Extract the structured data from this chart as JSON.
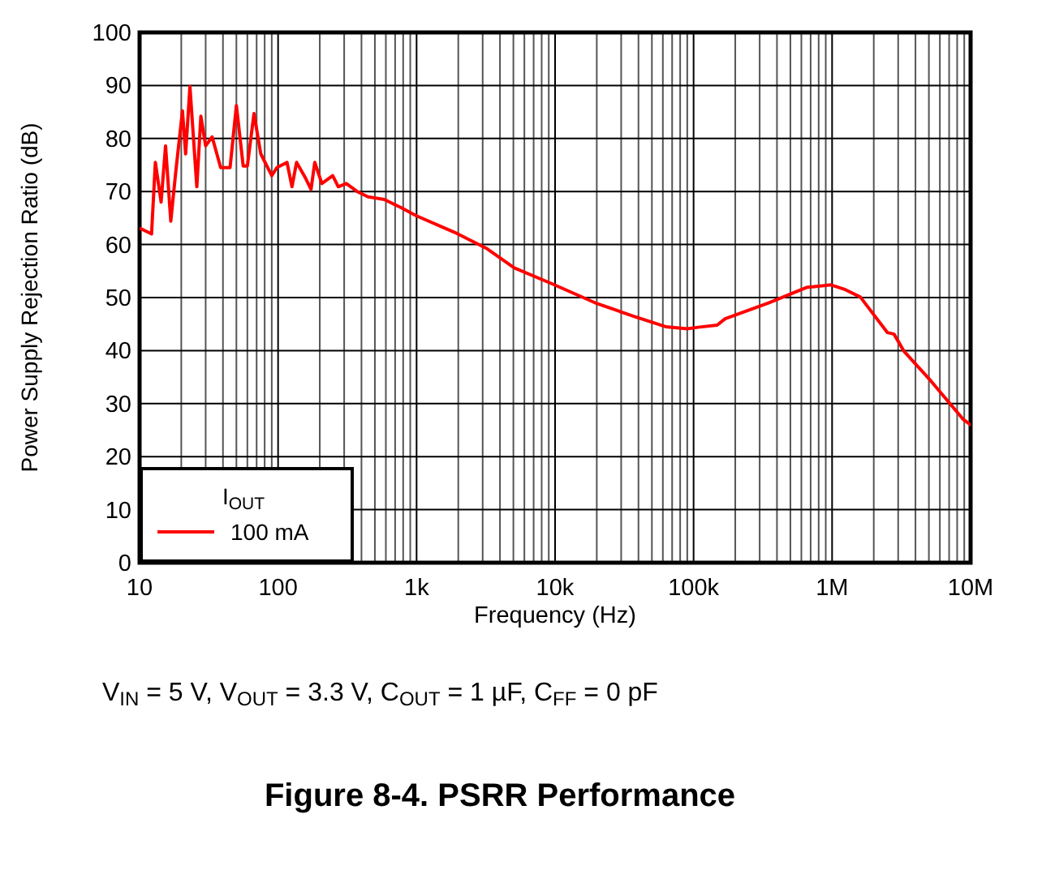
{
  "chart_data": {
    "type": "line",
    "title": "Figure 8-4. PSRR Performance",
    "xlabel": "Frequency (Hz)",
    "ylabel": "Power Supply Rejection Ratio (dB)",
    "legend_title": "I$_{OUT}$",
    "legend": "bottom left",
    "grid": true,
    "log": "x",
    "line_style": "solid",
    "annotations": [
      "V$_{IN}$ = 5 V, V$_{OUT}$ = 3.3 V, C$_{OUT}$ = 1 µF, C$_{FF}$ = 0 pF"
    ],
    "xlim": [
      10,
      10000000
    ],
    "ylim": [
      0,
      100
    ],
    "xticks": [
      {
        "value": 10,
        "label": "10"
      },
      {
        "value": 20,
        "label": null
      },
      {
        "value": 30,
        "label": null
      },
      {
        "value": 40,
        "label": null
      },
      {
        "value": 50,
        "label": null
      },
      {
        "value": 60,
        "label": null
      },
      {
        "value": 70,
        "label": null
      },
      {
        "value": 80,
        "label": null
      },
      {
        "value": 90,
        "label": null
      },
      {
        "value": 100,
        "label": "100"
      },
      {
        "value": 200,
        "label": null
      },
      {
        "value": 300,
        "label": null
      },
      {
        "value": 400,
        "label": null
      },
      {
        "value": 500,
        "label": null
      },
      {
        "value": 600,
        "label": null
      },
      {
        "value": 700,
        "label": null
      },
      {
        "value": 800,
        "label": null
      },
      {
        "value": 900,
        "label": null
      },
      {
        "value": 1000,
        "label": "1k"
      },
      {
        "value": 2000,
        "label": null
      },
      {
        "value": 3000,
        "label": null
      },
      {
        "value": 4000,
        "label": null
      },
      {
        "value": 5000,
        "label": null
      },
      {
        "value": 6000,
        "label": null
      },
      {
        "value": 7000,
        "label": null
      },
      {
        "value": 8000,
        "label": null
      },
      {
        "value": 9000,
        "label": null
      },
      {
        "value": 10000,
        "label": "10k"
      },
      {
        "value": 20000,
        "label": null
      },
      {
        "value": 30000,
        "label": null
      },
      {
        "value": 40000,
        "label": null
      },
      {
        "value": 50000,
        "label": null
      },
      {
        "value": 60000,
        "label": null
      },
      {
        "value": 70000,
        "label": null
      },
      {
        "value": 80000,
        "label": null
      },
      {
        "value": 90000,
        "label": null
      },
      {
        "value": 100000,
        "label": "100k"
      },
      {
        "value": 200000,
        "label": null
      },
      {
        "value": 300000,
        "label": null
      },
      {
        "value": 400000,
        "label": null
      },
      {
        "value": 500000,
        "label": null
      },
      {
        "value": 600000,
        "label": null
      },
      {
        "value": 700000,
        "label": null
      },
      {
        "value": 800000,
        "label": null
      },
      {
        "value": 900000,
        "label": null
      },
      {
        "value": 1000000,
        "label": "1M"
      },
      {
        "value": 2000000,
        "label": null
      },
      {
        "value": 3000000,
        "label": null
      },
      {
        "value": 4000000,
        "label": null
      },
      {
        "value": 5000000,
        "label": null
      },
      {
        "value": 6000000,
        "label": null
      },
      {
        "value": 7000000,
        "label": null
      },
      {
        "value": 8000000,
        "label": null
      },
      {
        "value": 9000000,
        "label": null
      },
      {
        "value": 10000000,
        "label": "10M"
      }
    ],
    "yticks": [
      0,
      10,
      20,
      30,
      40,
      50,
      60,
      70,
      80,
      90,
      100
    ],
    "series": [
      {
        "name": "100 mA",
        "color": "#ff0000",
        "x": [
          10,
          10.2,
          12.2,
          13,
          14.3,
          15.4,
          16.8,
          18.3,
          20.4,
          21.5,
          23.1,
          25.9,
          27.7,
          30,
          33.4,
          38.5,
          45,
          50,
          56,
          60,
          67,
          75,
          90,
          98,
          116,
          126,
          136,
          158,
          173,
          184,
          207,
          248,
          272,
          311,
          372,
          446,
          584,
          766,
          1000,
          1880,
          3230,
          5070,
          9500,
          19500,
          36600,
          62800,
          90000,
          108000,
          148000,
          169000,
          348000,
          653000,
          979000,
          1220000,
          1600000,
          2510000,
          2800000,
          3300000,
          5160000,
          8870000,
          10000000
        ],
        "values": [
          63,
          63,
          62,
          75.5,
          68,
          78.6,
          64.4,
          74,
          85.2,
          77.1,
          89.8,
          70.9,
          84.2,
          78.6,
          80.3,
          74.5,
          74.5,
          86.2,
          74.8,
          74.8,
          84.7,
          77.1,
          73,
          74.5,
          75.5,
          70.9,
          75.5,
          72.5,
          70.4,
          75.5,
          71.5,
          73,
          70.9,
          71.5,
          70,
          69,
          68.5,
          67,
          65.4,
          62.3,
          59.2,
          55.6,
          52.6,
          49,
          46.5,
          44.5,
          44.1,
          44.4,
          44.8,
          46,
          49,
          51.9,
          52.4,
          51.6,
          50.1,
          43.4,
          43.1,
          39.9,
          34.3,
          27,
          26
        ]
      }
    ]
  }
}
